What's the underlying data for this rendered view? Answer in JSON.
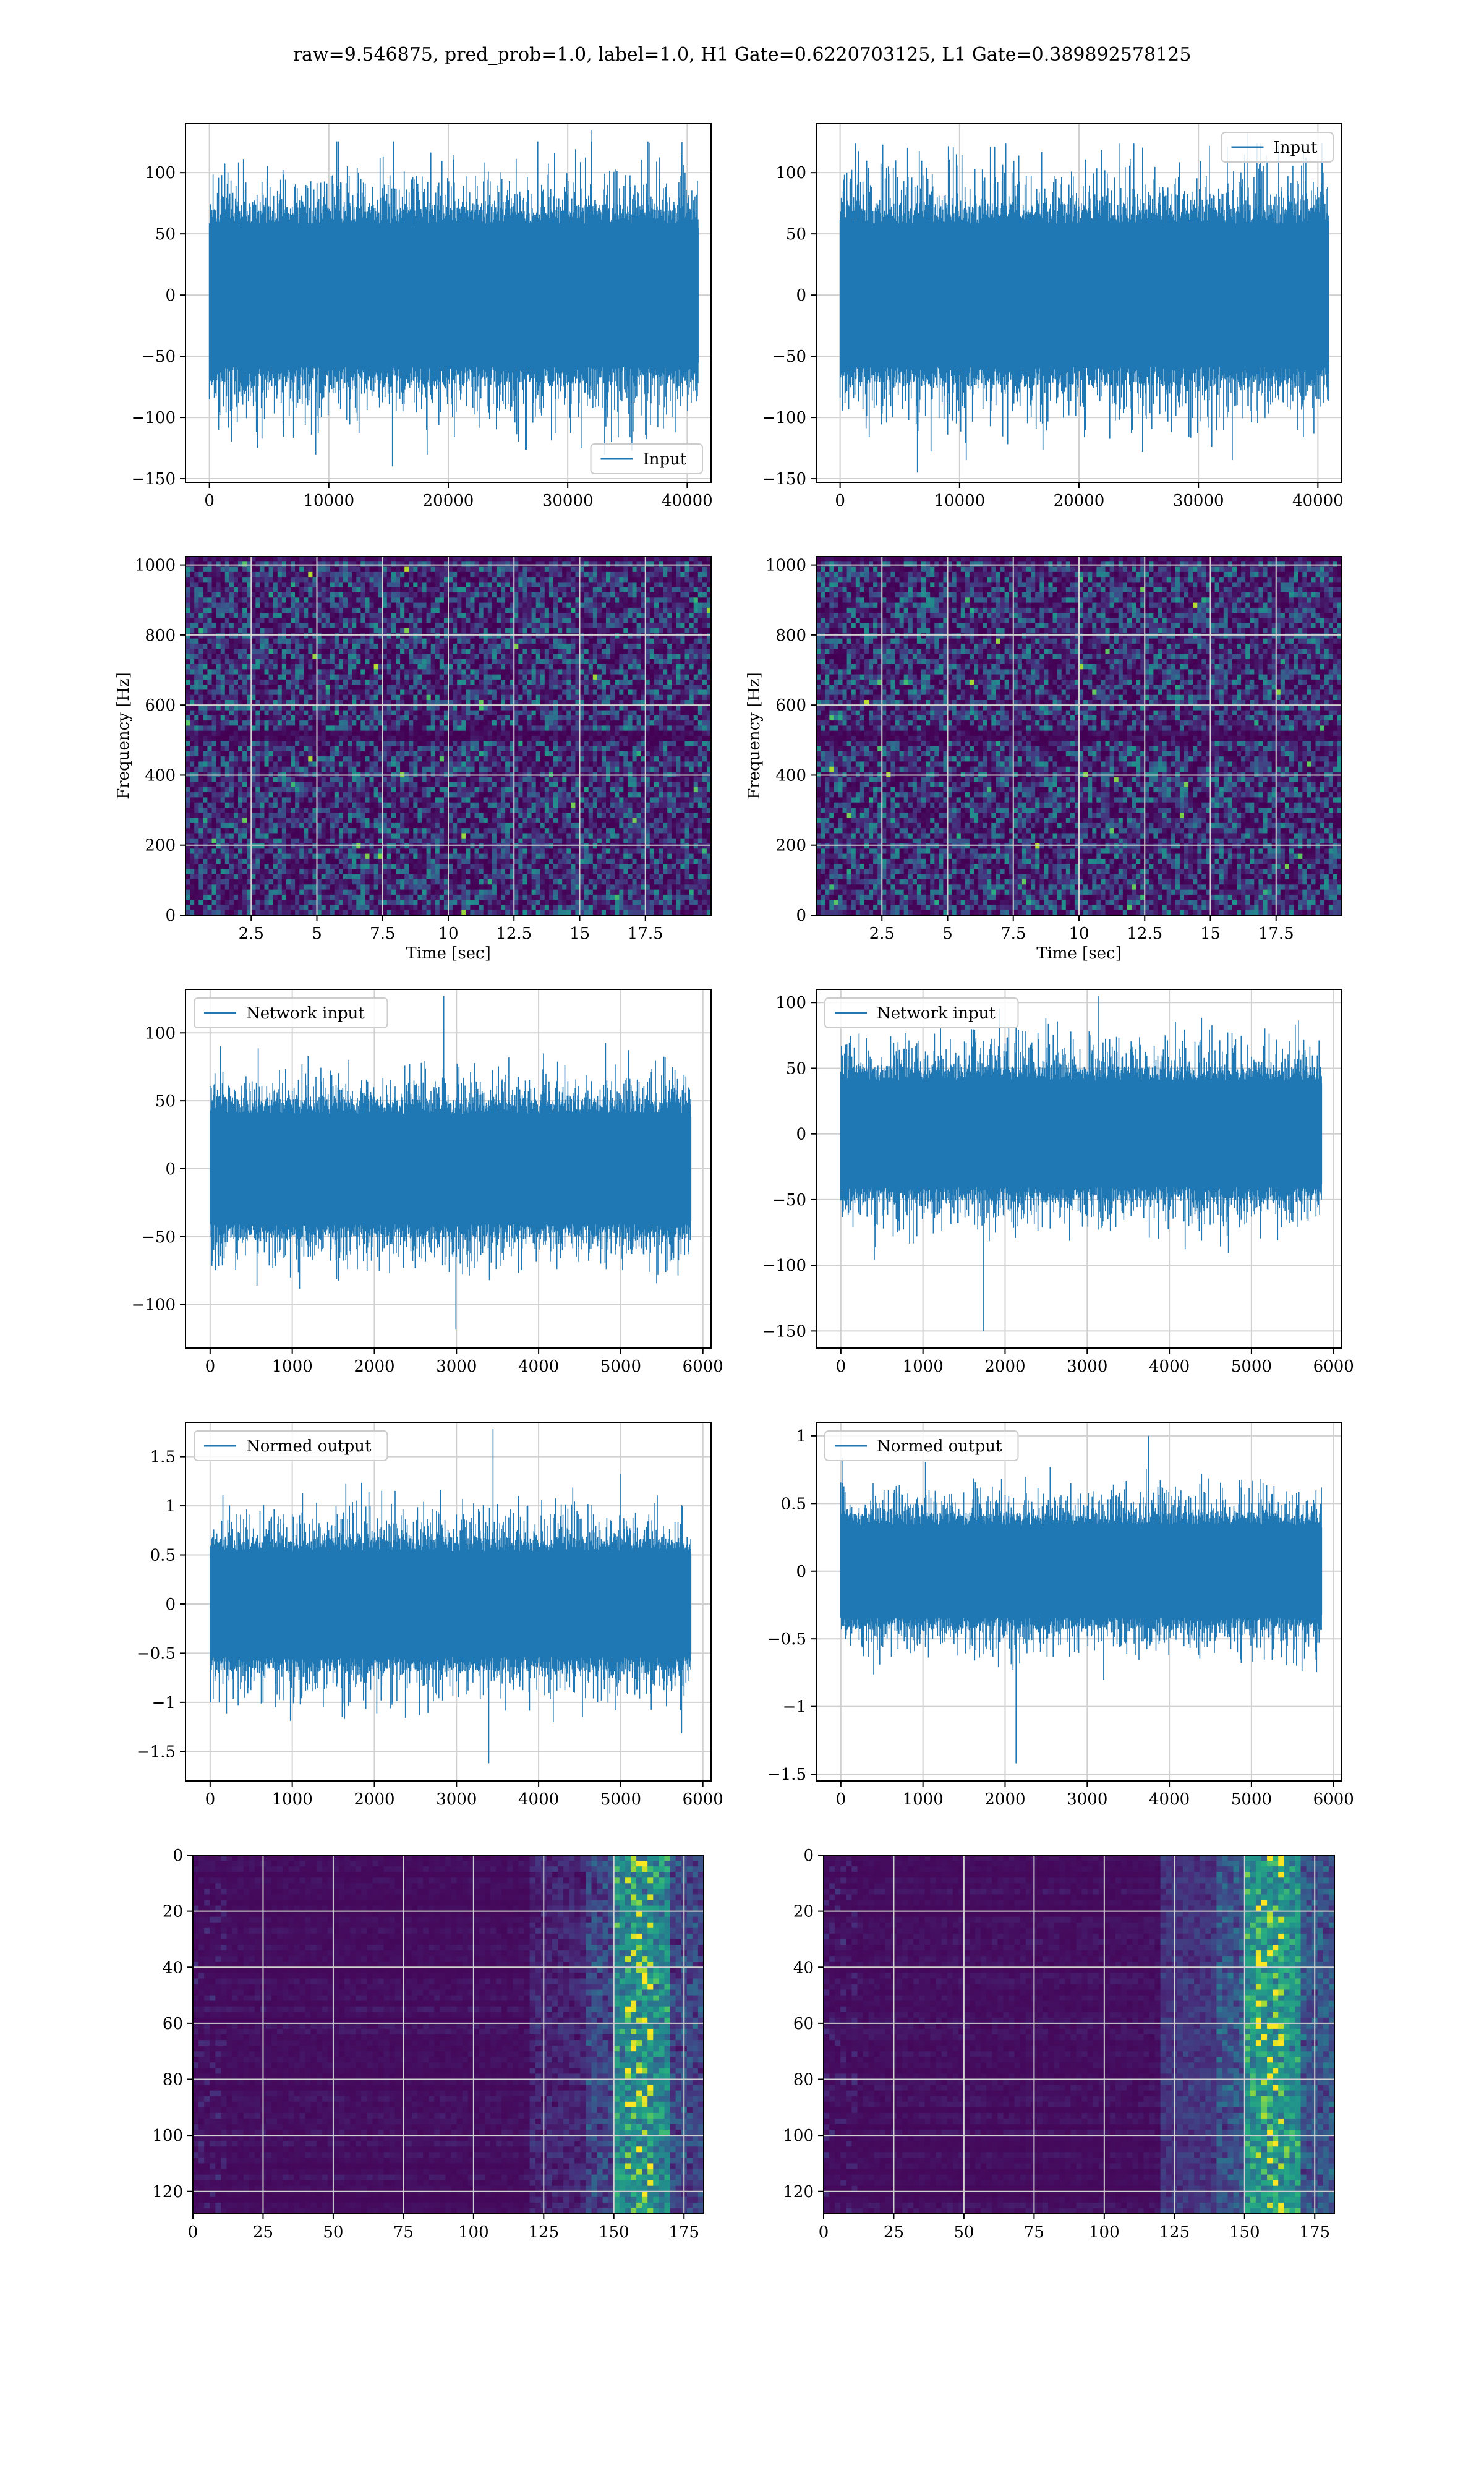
{
  "figure": {
    "title": "raw=9.546875, pred_prob=1.0, label=1.0, H1 Gate=0.6220703125, L1 Gate=0.389892578125"
  },
  "colors": {
    "line": "#1f77b4",
    "grid": "#d0d0d0",
    "axis": "#000000",
    "viridis": [
      "#440154",
      "#472d7b",
      "#3b528b",
      "#2c728e",
      "#21918c",
      "#28ae80",
      "#5ec962",
      "#addc30",
      "#fde725"
    ]
  },
  "chart_data": [
    {
      "id": "h1-input",
      "type": "line",
      "series": [
        {
          "name": "Input",
          "n_samples": 40960,
          "center": 0,
          "amplitude": 65,
          "peak_max": 135,
          "peak_min": -140
        }
      ],
      "legend": "bottom-right",
      "xlim": [
        -2000,
        42000
      ],
      "ylim": [
        -153,
        140
      ],
      "xticks": [
        0,
        10000,
        20000,
        30000,
        40000
      ],
      "yticks": [
        100,
        50,
        0,
        -50,
        -100,
        -150
      ],
      "grid": true,
      "xlabel": "",
      "ylabel": ""
    },
    {
      "id": "l1-input",
      "type": "line",
      "series": [
        {
          "name": "Input",
          "n_samples": 40960,
          "center": 0,
          "amplitude": 65,
          "peak_max": 133,
          "peak_min": -145
        }
      ],
      "legend": "top-right",
      "xlim": [
        -2000,
        42000
      ],
      "ylim": [
        -153,
        140
      ],
      "xticks": [
        0,
        10000,
        20000,
        30000,
        40000
      ],
      "yticks": [
        100,
        50,
        0,
        -50,
        -100,
        -150
      ],
      "grid": true,
      "xlabel": "",
      "ylabel": ""
    },
    {
      "id": "h1-spectrogram",
      "type": "heatmap",
      "xlim": [
        0,
        20
      ],
      "ylim": [
        0,
        1024
      ],
      "xticks": [
        2.5,
        5.0,
        7.5,
        10.0,
        12.5,
        15.0,
        17.5
      ],
      "yticks": [
        0,
        200,
        400,
        600,
        800,
        1000
      ],
      "xlabel": "Time [sec]",
      "ylabel": "Frequency [Hz]",
      "grid": true
    },
    {
      "id": "l1-spectrogram",
      "type": "heatmap",
      "xlim": [
        0,
        20
      ],
      "ylim": [
        0,
        1024
      ],
      "xticks": [
        2.5,
        5.0,
        7.5,
        10.0,
        12.5,
        15.0,
        17.5
      ],
      "yticks": [
        0,
        200,
        400,
        600,
        800,
        1000
      ],
      "xlabel": "Time [sec]",
      "ylabel": "Frequency [Hz]",
      "grid": true
    },
    {
      "id": "h1-network-input",
      "type": "line",
      "series": [
        {
          "name": "Network input",
          "n_samples": 5860,
          "center": 0,
          "amplitude": 45,
          "peak_max": 127,
          "peak_min": -118
        }
      ],
      "legend": "top-left",
      "xlim": [
        -300,
        6100
      ],
      "ylim": [
        -132,
        132
      ],
      "xticks": [
        0,
        1000,
        2000,
        3000,
        4000,
        5000,
        6000
      ],
      "yticks": [
        100,
        50,
        0,
        -50,
        -100
      ],
      "grid": true,
      "xlabel": "",
      "ylabel": ""
    },
    {
      "id": "l1-network-input",
      "type": "line",
      "series": [
        {
          "name": "Network input",
          "n_samples": 5860,
          "center": 0,
          "amplitude": 45,
          "peak_max": 105,
          "peak_min": -150
        }
      ],
      "legend": "top-left",
      "xlim": [
        -300,
        6100
      ],
      "ylim": [
        -163,
        110
      ],
      "xticks": [
        0,
        1000,
        2000,
        3000,
        4000,
        5000,
        6000
      ],
      "yticks": [
        100,
        50,
        0,
        -50,
        -100,
        -150
      ],
      "grid": true,
      "xlabel": "",
      "ylabel": ""
    },
    {
      "id": "h1-normed-output",
      "type": "line",
      "series": [
        {
          "name": "Normed output",
          "n_samples": 5860,
          "center": 0,
          "amplitude": 0.6,
          "peak_max": 1.78,
          "peak_min": -1.62
        }
      ],
      "legend": "top-left",
      "xlim": [
        -300,
        6100
      ],
      "ylim": [
        -1.8,
        1.85
      ],
      "xticks": [
        0,
        1000,
        2000,
        3000,
        4000,
        5000,
        6000
      ],
      "yticks": [
        1.5,
        1.0,
        0.5,
        0.0,
        -0.5,
        -1.0,
        -1.5
      ],
      "grid": true,
      "xlabel": "",
      "ylabel": ""
    },
    {
      "id": "l1-normed-output",
      "type": "line",
      "series": [
        {
          "name": "Normed output",
          "n_samples": 5860,
          "center": 0,
          "amplitude": 0.38,
          "peak_max": 1.0,
          "peak_min": -1.42
        }
      ],
      "legend": "top-left",
      "xlim": [
        -300,
        6100
      ],
      "ylim": [
        -1.55,
        1.1
      ],
      "xticks": [
        0,
        1000,
        2000,
        3000,
        4000,
        5000,
        6000
      ],
      "yticks": [
        1.0,
        0.5,
        0.0,
        -0.5,
        -1.0,
        -1.5
      ],
      "grid": true,
      "xlabel": "",
      "ylabel": ""
    },
    {
      "id": "h1-feature-map",
      "type": "heatmap",
      "xlim": [
        0,
        182
      ],
      "ylim": [
        128,
        0
      ],
      "xticks": [
        0,
        25,
        50,
        75,
        100,
        125,
        150,
        175
      ],
      "yticks": [
        0,
        20,
        40,
        60,
        80,
        100,
        120
      ],
      "grid": true,
      "xlabel": "",
      "ylabel": ""
    },
    {
      "id": "l1-feature-map",
      "type": "heatmap",
      "xlim": [
        0,
        182
      ],
      "ylim": [
        128,
        0
      ],
      "xticks": [
        0,
        25,
        50,
        75,
        100,
        125,
        150,
        175
      ],
      "yticks": [
        0,
        20,
        40,
        60,
        80,
        100,
        120
      ],
      "grid": true,
      "xlabel": "",
      "ylabel": ""
    }
  ]
}
